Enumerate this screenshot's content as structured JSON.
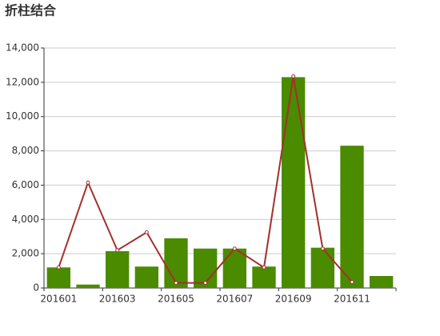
{
  "chart_data": {
    "type": "bar-line",
    "title": "折柱结合",
    "categories": [
      "201601",
      null,
      "201603",
      null,
      "201605",
      null,
      "201607",
      null,
      "201609",
      null,
      "201611",
      null
    ],
    "series": [
      {
        "type": "bar",
        "color": "#4a8b00",
        "values": [
          1200,
          200,
          2150,
          1250,
          2900,
          2300,
          2300,
          1250,
          12300,
          2350,
          8300,
          700
        ]
      },
      {
        "type": "line",
        "color": "#a3302c",
        "values": [
          1200,
          6150,
          2200,
          3250,
          300,
          300,
          2300,
          1200,
          12350,
          2300,
          350,
          null
        ]
      }
    ],
    "ylim": [
      0,
      14000
    ],
    "yticks": [
      0,
      {
        "value": 2000,
        "label": "2,000"
      },
      {
        "value": 4000,
        "label": "4,000"
      },
      {
        "value": 6000,
        "label": "6,000"
      },
      {
        "value": 8000,
        "label": "8,000"
      },
      {
        "value": 10000,
        "label": "10,000"
      },
      {
        "value": 12000,
        "label": "12,000"
      },
      {
        "value": 14000,
        "label": "14,000"
      }
    ],
    "grid": true
  }
}
